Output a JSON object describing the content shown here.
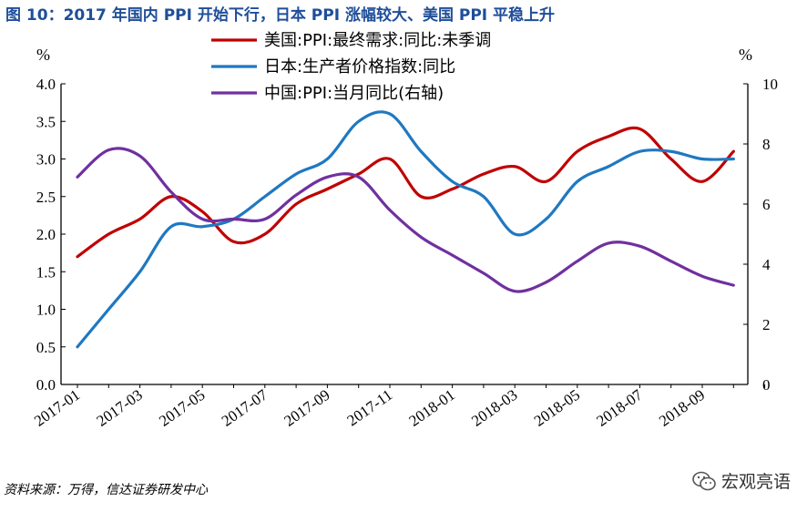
{
  "figure": {
    "title": "图 10：2017 年国内 PPI 开始下行，日本 PPI 涨幅较大、美国 PPI 平稳上升",
    "source": "资料来源：万得，信达证券研发中心",
    "watermark": "宏观亮语",
    "watermark_icon": "wechat-icon"
  },
  "chart_data": {
    "type": "line",
    "x": [
      "2017-01",
      "2017-02",
      "2017-03",
      "2017-04",
      "2017-05",
      "2017-06",
      "2017-07",
      "2017-08",
      "2017-09",
      "2017-10",
      "2017-11",
      "2017-12",
      "2018-01",
      "2018-02",
      "2018-03",
      "2018-04",
      "2018-05",
      "2018-06",
      "2018-07",
      "2018-08",
      "2018-09",
      "2018-10"
    ],
    "x_tick_labels": [
      "2017-01",
      "2017-03",
      "2017-05",
      "2017-07",
      "2017-09",
      "2017-11",
      "2018-01",
      "2018-03",
      "2018-05",
      "2018-07",
      "2018-09"
    ],
    "left_axis": {
      "unit": "%",
      "range": [
        0,
        4.0
      ],
      "ticks": [
        "0.0",
        "0.5",
        "1.0",
        "1.5",
        "2.0",
        "2.5",
        "3.0",
        "3.5",
        "4.0"
      ]
    },
    "right_axis": {
      "unit": "%",
      "range": [
        0,
        10
      ],
      "ticks": [
        "0",
        "2",
        "4",
        "6",
        "8",
        "10"
      ]
    },
    "grid": false,
    "legend_position": "top-center",
    "series": [
      {
        "name": "美国:PPI:最终需求:同比:未季调",
        "axis": "left",
        "color": "#c00000",
        "values": [
          1.7,
          2.0,
          2.2,
          2.5,
          2.3,
          1.9,
          2.0,
          2.4,
          2.6,
          2.8,
          3.0,
          2.5,
          2.6,
          2.8,
          2.9,
          2.7,
          3.1,
          3.3,
          3.4,
          3.0,
          2.7,
          3.1
        ]
      },
      {
        "name": "日本:生产者价格指数:同比",
        "axis": "left",
        "color": "#1f78c1",
        "values": [
          0.5,
          1.0,
          1.5,
          2.1,
          2.1,
          2.2,
          2.5,
          2.8,
          3.0,
          3.5,
          3.6,
          3.1,
          2.7,
          2.5,
          2.0,
          2.2,
          2.7,
          2.9,
          3.1,
          3.1,
          3.0,
          3.0
        ]
      },
      {
        "name": "中国:PPI:当月同比(右轴)",
        "axis": "right",
        "color": "#7030a0",
        "values": [
          6.9,
          7.8,
          7.6,
          6.4,
          5.5,
          5.5,
          5.5,
          6.3,
          6.9,
          6.9,
          5.8,
          4.9,
          4.3,
          3.7,
          3.1,
          3.4,
          4.1,
          4.7,
          4.6,
          4.1,
          3.6,
          3.3
        ]
      }
    ]
  }
}
